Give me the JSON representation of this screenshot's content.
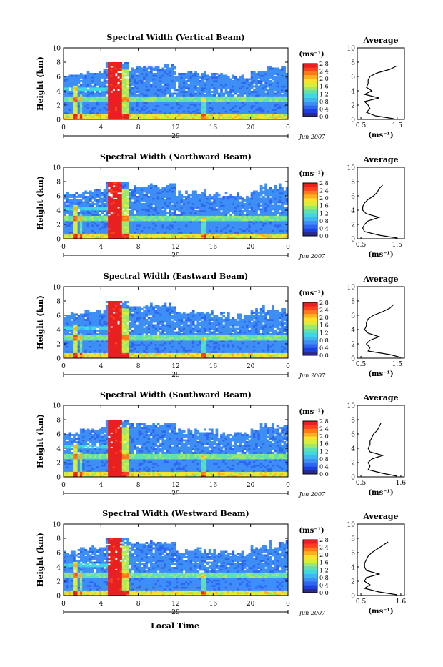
{
  "figure": {
    "xlabel": "Local Time",
    "date_label": "Jun 2007",
    "day_label": "29"
  },
  "colorbar": {
    "unit": "(ms⁻¹)",
    "ticks": [
      "0.0",
      "0.4",
      "0.8",
      "1.2",
      "1.6",
      "2.0",
      "2.4",
      "2.8"
    ],
    "colors": [
      "#2a2a8c",
      "#1d3fe0",
      "#2f66f0",
      "#3d8ef5",
      "#3fb6f0",
      "#3fd8e0",
      "#5fe0b0",
      "#9fe86a",
      "#d8ee3a",
      "#ffe02a",
      "#ffb020",
      "#ff7a18",
      "#ff4020",
      "#e82020"
    ]
  },
  "chart_data": [
    {
      "type": "heatmap",
      "title": "Spectral Width (Vertical Beam)",
      "ylabel": "Height (km)",
      "x_ticks": [
        "0",
        "4",
        "8",
        "12",
        "16",
        "20",
        "0"
      ],
      "y_ticks": [
        "0",
        "2",
        "4",
        "6",
        "8",
        "10"
      ],
      "xlim": [
        0,
        24
      ],
      "ylim": [
        0,
        10
      ],
      "color_range": [
        0.0,
        2.8
      ],
      "profile": {
        "title": "Average",
        "xlabel": "(ms⁻¹)",
        "x_ticks": [
          "0.5",
          "1.5"
        ],
        "xlim": [
          0.4,
          1.7
        ],
        "y_ticks": [
          "0",
          "2",
          "4",
          "6",
          "8",
          "10"
        ],
        "height_km": [
          0.1,
          0.5,
          1.0,
          1.5,
          2.0,
          2.5,
          3.0,
          3.5,
          4.0,
          4.5,
          5.0,
          5.5,
          6.0,
          6.5,
          7.0,
          7.5
        ],
        "width_ms": [
          1.4,
          0.9,
          0.65,
          0.75,
          0.7,
          0.6,
          1.0,
          0.6,
          0.8,
          0.65,
          0.7,
          0.7,
          0.75,
          0.95,
          1.3,
          1.5
        ]
      }
    },
    {
      "type": "heatmap",
      "title": "Spectral Width (Northward Beam)",
      "ylabel": "Height (km)",
      "x_ticks": [
        "0",
        "4",
        "8",
        "12",
        "16",
        "20",
        "0"
      ],
      "y_ticks": [
        "0",
        "2",
        "4",
        "6",
        "8",
        "10"
      ],
      "xlim": [
        0,
        24
      ],
      "ylim": [
        0,
        10
      ],
      "color_range": [
        0.0,
        2.8
      ],
      "profile": {
        "title": "Average",
        "xlabel": "(ms⁻¹)",
        "x_ticks": [
          "0.5",
          "1.5"
        ],
        "xlim": [
          0.4,
          1.7
        ],
        "y_ticks": [
          "0",
          "2",
          "4",
          "6",
          "8",
          "10"
        ],
        "height_km": [
          0.1,
          0.5,
          1.0,
          1.5,
          2.0,
          2.5,
          3.0,
          3.5,
          4.0,
          4.5,
          5.0,
          5.5,
          6.0,
          6.5,
          7.0,
          7.5
        ],
        "width_ms": [
          1.5,
          1.0,
          0.6,
          0.55,
          0.6,
          0.7,
          1.0,
          0.65,
          0.55,
          0.55,
          0.6,
          0.7,
          0.85,
          0.95,
          1.0,
          1.1
        ]
      }
    },
    {
      "type": "heatmap",
      "title": "Spectral Width (Eastward Beam)",
      "ylabel": "Height (km)",
      "x_ticks": [
        "0",
        "4",
        "8",
        "12",
        "16",
        "20",
        "0"
      ],
      "y_ticks": [
        "0",
        "2",
        "4",
        "6",
        "8",
        "10"
      ],
      "xlim": [
        0,
        24
      ],
      "ylim": [
        0,
        10
      ],
      "color_range": [
        0.0,
        2.8
      ],
      "profile": {
        "title": "Average",
        "xlabel": "(ms⁻¹)",
        "x_ticks": [
          "0.5",
          "1.5"
        ],
        "xlim": [
          0.4,
          1.7
        ],
        "y_ticks": [
          "0",
          "2",
          "4",
          "6",
          "8",
          "10"
        ],
        "height_km": [
          0.1,
          0.5,
          1.0,
          1.5,
          2.0,
          2.5,
          3.0,
          3.5,
          4.0,
          4.5,
          5.0,
          5.5,
          6.0,
          6.5,
          7.0,
          7.5
        ],
        "width_ms": [
          1.6,
          1.3,
          0.7,
          0.75,
          0.65,
          0.75,
          1.0,
          0.7,
          0.6,
          0.65,
          0.65,
          0.7,
          0.85,
          1.1,
          1.3,
          1.4
        ]
      }
    },
    {
      "type": "heatmap",
      "title": "Spectral Width (Southward Beam)",
      "ylabel": "Height (km)",
      "x_ticks": [
        "0",
        "4",
        "8",
        "12",
        "16",
        "20",
        "0"
      ],
      "y_ticks": [
        "0",
        "2",
        "4",
        "6",
        "8",
        "10"
      ],
      "xlim": [
        0,
        24
      ],
      "ylim": [
        0,
        10
      ],
      "color_range": [
        0.0,
        2.8
      ],
      "profile": {
        "title": "Average",
        "xlabel": "(ms⁻¹)",
        "x_ticks": [
          "0.5",
          "1.6"
        ],
        "xlim": [
          0.4,
          1.7
        ],
        "y_ticks": [
          "0",
          "2",
          "4",
          "6",
          "8",
          "10"
        ],
        "height_km": [
          0.1,
          0.5,
          1.0,
          1.5,
          2.0,
          2.5,
          3.0,
          3.5,
          4.0,
          4.5,
          5.0,
          5.5,
          6.0,
          6.5,
          7.0,
          7.5
        ],
        "width_ms": [
          1.5,
          1.1,
          0.7,
          0.75,
          0.7,
          0.8,
          1.1,
          0.75,
          0.7,
          0.75,
          0.75,
          0.8,
          0.85,
          0.95,
          1.0,
          1.05
        ]
      }
    },
    {
      "type": "heatmap",
      "title": "Spectral Width (Westward Beam)",
      "ylabel": "Height (km)",
      "x_ticks": [
        "0",
        "4",
        "8",
        "12",
        "16",
        "20",
        "0"
      ],
      "y_ticks": [
        "0",
        "2",
        "4",
        "6",
        "8",
        "10"
      ],
      "xlim": [
        0,
        24
      ],
      "ylim": [
        0,
        10
      ],
      "color_range": [
        0.0,
        2.8
      ],
      "profile": {
        "title": "Average",
        "xlabel": "(ms⁻¹)",
        "x_ticks": [
          "0.5",
          "1.6"
        ],
        "xlim": [
          0.4,
          1.7
        ],
        "y_ticks": [
          "0",
          "2",
          "4",
          "6",
          "8",
          "10"
        ],
        "height_km": [
          0.1,
          0.5,
          1.0,
          1.5,
          2.0,
          2.5,
          3.0,
          3.5,
          4.0,
          4.5,
          5.0,
          5.5,
          6.0,
          6.5,
          7.0,
          7.5
        ],
        "width_ms": [
          1.5,
          1.0,
          0.6,
          0.75,
          0.6,
          0.65,
          1.0,
          0.65,
          0.6,
          0.6,
          0.65,
          0.7,
          0.8,
          0.95,
          1.1,
          1.25
        ]
      }
    }
  ]
}
